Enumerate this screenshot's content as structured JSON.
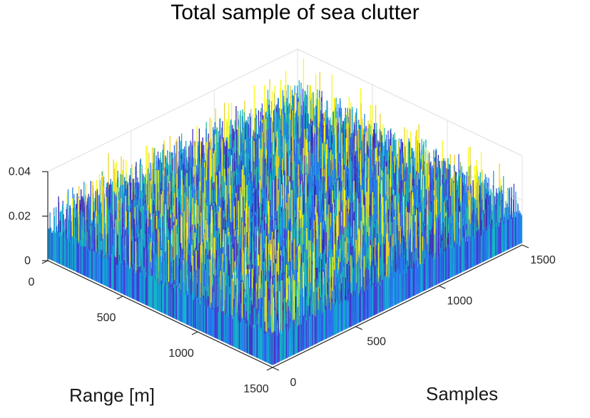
{
  "chart_data": {
    "type": "surface",
    "title": "Total sample of sea clutter",
    "xlabel": "Range [m]",
    "ylabel": "Samples",
    "zlabel": "",
    "x_ticks": [
      0,
      500,
      1000,
      1500
    ],
    "y_ticks": [
      0,
      500,
      1000,
      1500
    ],
    "z_ticks": [
      0,
      0.02,
      0.04
    ],
    "x_tick_labels": [
      "0",
      "500",
      "1000",
      "1500"
    ],
    "y_tick_labels": [
      "0",
      "500",
      "1000",
      "1500"
    ],
    "z_tick_labels": [
      "0",
      "0.02",
      "0.04"
    ],
    "xlim": [
      0,
      1500
    ],
    "ylim": [
      0,
      1500
    ],
    "zlim": [
      0,
      0.04
    ],
    "grid": true,
    "colormap": "parula",
    "colors": {
      "low": "#3d26a8",
      "mid_low": "#2c6ef2",
      "mid": "#14b5c9",
      "high": "#f9fb0e"
    }
  }
}
